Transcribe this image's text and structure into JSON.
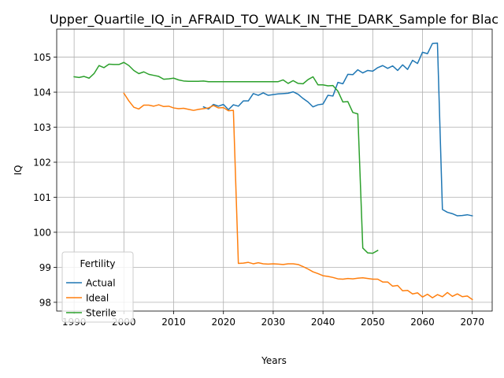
{
  "chart_data": {
    "type": "line",
    "title": "Upper_Quartile_IQ_in_AFRAID_TO_WALK_IN_THE_DARK_Sample for Blac",
    "xlabel": "Years",
    "ylabel": "IQ",
    "xlim": [
      1986.5,
      2074
    ],
    "ylim": [
      97.75,
      105.8
    ],
    "xticks": [
      1990,
      2000,
      2010,
      2020,
      2030,
      2040,
      2050,
      2060,
      2070
    ],
    "yticks": [
      98,
      99,
      100,
      101,
      102,
      103,
      104,
      105
    ],
    "grid": true,
    "legend": {
      "title": "Fertility",
      "placement": "lower-left"
    },
    "series": [
      {
        "name": "Actual",
        "color": "#1f77b4",
        "x": [
          2016,
          2017,
          2018,
          2019,
          2020,
          2021,
          2022,
          2023,
          2024,
          2025,
          2026,
          2027,
          2028,
          2029,
          2030,
          2031,
          2032,
          2033,
          2034,
          2035,
          2036,
          2037,
          2038,
          2039,
          2040,
          2041,
          2042,
          2043,
          2044,
          2045,
          2046,
          2047,
          2048,
          2049,
          2050,
          2051,
          2052,
          2053,
          2054,
          2055,
          2056,
          2057,
          2058,
          2059,
          2060,
          2061,
          2062,
          2063,
          2064,
          2065,
          2066,
          2067,
          2068,
          2069,
          2070
        ],
        "y": [
          103.58,
          103.52,
          103.65,
          103.6,
          103.65,
          103.5,
          103.64,
          103.6,
          103.75,
          103.75,
          103.96,
          103.91,
          103.98,
          103.91,
          103.93,
          103.95,
          103.96,
          103.97,
          104.01,
          103.94,
          103.82,
          103.72,
          103.58,
          103.64,
          103.66,
          103.91,
          103.89,
          104.28,
          104.24,
          104.51,
          104.5,
          104.64,
          104.55,
          104.62,
          104.6,
          104.7,
          104.76,
          104.68,
          104.75,
          104.62,
          104.78,
          104.65,
          104.91,
          104.82,
          105.14,
          105.1,
          105.39,
          105.4,
          100.65,
          100.57,
          100.53,
          100.47,
          100.48,
          100.5,
          100.47
        ]
      },
      {
        "name": "Ideal",
        "color": "#ff7f0e",
        "x": [
          2000,
          2001,
          2002,
          2003,
          2004,
          2005,
          2006,
          2007,
          2008,
          2009,
          2010,
          2011,
          2012,
          2013,
          2014,
          2015,
          2016,
          2017,
          2018,
          2019,
          2020,
          2021,
          2022,
          2023,
          2024,
          2025,
          2026,
          2027,
          2028,
          2029,
          2030,
          2031,
          2032,
          2033,
          2034,
          2035,
          2036,
          2037,
          2038,
          2039,
          2040,
          2041,
          2042,
          2043,
          2044,
          2045,
          2046,
          2047,
          2048,
          2049,
          2050,
          2051,
          2052,
          2053,
          2054,
          2055,
          2056,
          2057,
          2058,
          2059,
          2060,
          2061,
          2062,
          2063,
          2064,
          2065,
          2066,
          2067,
          2068,
          2069,
          2070
        ],
        "y": [
          103.97,
          103.75,
          103.57,
          103.52,
          103.63,
          103.63,
          103.6,
          103.64,
          103.59,
          103.6,
          103.55,
          103.53,
          103.54,
          103.51,
          103.48,
          103.51,
          103.53,
          103.55,
          103.62,
          103.55,
          103.56,
          103.47,
          103.48,
          99.11,
          99.12,
          99.14,
          99.1,
          99.13,
          99.1,
          99.09,
          99.1,
          99.09,
          99.08,
          99.1,
          99.1,
          99.08,
          99.02,
          98.95,
          98.87,
          98.82,
          98.76,
          98.74,
          98.71,
          98.67,
          98.66,
          98.68,
          98.67,
          98.69,
          98.7,
          98.68,
          98.66,
          98.66,
          98.58,
          98.58,
          98.46,
          98.48,
          98.33,
          98.34,
          98.24,
          98.27,
          98.15,
          98.23,
          98.13,
          98.22,
          98.16,
          98.28,
          98.17,
          98.24,
          98.16,
          98.18,
          98.08
        ]
      },
      {
        "name": "Sterile",
        "color": "#2ca02c",
        "x": [
          1990,
          1991,
          1992,
          1993,
          1994,
          1995,
          1996,
          1997,
          1998,
          1999,
          2000,
          2001,
          2002,
          2003,
          2004,
          2005,
          2006,
          2007,
          2008,
          2009,
          2010,
          2011,
          2012,
          2013,
          2014,
          2015,
          2016,
          2017,
          2018,
          2019,
          2020,
          2021,
          2022,
          2023,
          2024,
          2025,
          2026,
          2027,
          2028,
          2029,
          2030,
          2031,
          2032,
          2033,
          2034,
          2035,
          2036,
          2037,
          2038,
          2039,
          2040,
          2041,
          2042,
          2043,
          2044,
          2045,
          2046,
          2047,
          2048,
          2049,
          2050,
          2051
        ],
        "y": [
          104.44,
          104.42,
          104.45,
          104.4,
          104.53,
          104.76,
          104.7,
          104.8,
          104.79,
          104.79,
          104.85,
          104.76,
          104.62,
          104.53,
          104.58,
          104.51,
          104.48,
          104.45,
          104.37,
          104.38,
          104.4,
          104.35,
          104.32,
          104.31,
          104.31,
          104.31,
          104.32,
          104.3,
          104.3,
          104.3,
          104.3,
          104.3,
          104.3,
          104.3,
          104.3,
          104.3,
          104.3,
          104.3,
          104.3,
          104.3,
          104.3,
          104.3,
          104.35,
          104.25,
          104.33,
          104.25,
          104.24,
          104.36,
          104.44,
          104.21,
          104.21,
          104.18,
          104.19,
          104.03,
          103.72,
          103.73,
          103.42,
          103.38,
          99.55,
          99.41,
          99.4,
          99.48
        ]
      }
    ]
  }
}
